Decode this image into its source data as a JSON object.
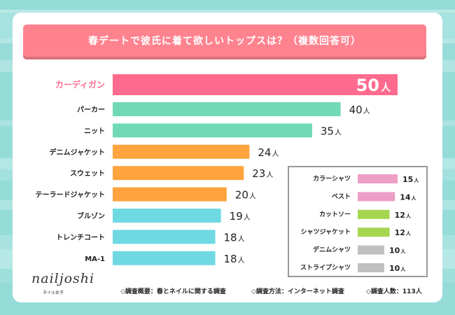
{
  "title": "春デートで彼氏に着て欲しいトップスは？（複数回答可）",
  "unit": "人",
  "colors": {
    "background": "#95dcd9",
    "banner": "#ff838f",
    "highlight": "#ff6b8e",
    "green": "#72d9b7",
    "orange": "#ffa33e",
    "cyan": "#6fd9e3",
    "pink": "#ee9dc6",
    "lime": "#a6d650",
    "gray": "#c0c0c0"
  },
  "chart_data": [
    {
      "type": "bar",
      "orientation": "horizontal",
      "title": "春デートで彼氏に着て欲しいトップスは？（複数回答可）",
      "categories": [
        "カーディガン",
        "パーカー",
        "ニット",
        "デニムジャケット",
        "スウェット",
        "テーラードジャケット",
        "ブルゾン",
        "トレンチコート",
        "MA-1"
      ],
      "values": [
        50,
        40,
        35,
        24,
        23,
        20,
        19,
        18,
        18
      ],
      "bar_colors": [
        "#ff6b8e",
        "#72d9b7",
        "#72d9b7",
        "#ffa33e",
        "#ffa33e",
        "#ffa33e",
        "#6fd9e3",
        "#6fd9e3",
        "#6fd9e3"
      ],
      "value_suffix": "人",
      "highlight_index": 0,
      "xlabel": "",
      "ylabel": "",
      "xlim": [
        0,
        50
      ],
      "grid": false
    },
    {
      "type": "bar",
      "orientation": "horizontal",
      "title": "",
      "categories": [
        "カラーシャツ",
        "ベスト",
        "カットソー",
        "シャツジャケット",
        "デニムシャツ",
        "ストライプシャツ"
      ],
      "values": [
        15,
        14,
        12,
        12,
        10,
        10
      ],
      "bar_colors": [
        "#ee9dc6",
        "#ee9dc6",
        "#a6d650",
        "#a6d650",
        "#c0c0c0",
        "#c0c0c0"
      ],
      "value_suffix": "人",
      "grid": false
    }
  ],
  "logo": {
    "main": "nailjoshi",
    "sub": "ネイル女子"
  },
  "footer": [
    "◇調査概要：春とネイルに関する調査",
    "◇調査方法：インターネット調査",
    "◇調査人数：113人"
  ]
}
